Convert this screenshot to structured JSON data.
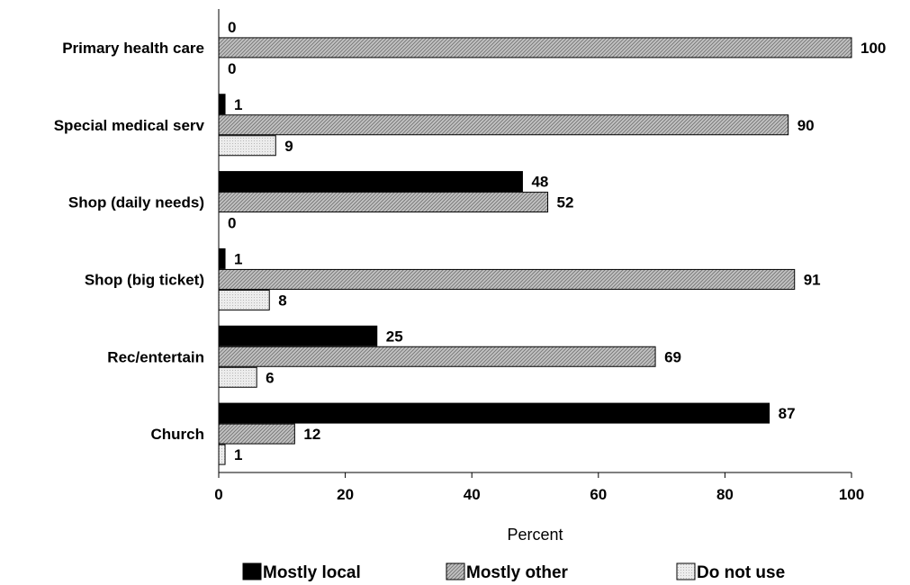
{
  "chart_data": {
    "type": "bar",
    "orientation": "horizontal",
    "categories": [
      "Primary health care",
      "Special medical serv",
      "Shop (daily needs)",
      "Shop (big ticket)",
      "Rec/entertain",
      "Church"
    ],
    "series": [
      {
        "name": "Mostly local",
        "values": [
          0,
          1,
          48,
          1,
          25,
          87
        ],
        "color": "#000000",
        "pattern": "solid"
      },
      {
        "name": "Mostly other",
        "values": [
          100,
          90,
          52,
          91,
          69,
          12
        ],
        "color": "#b0b0b0",
        "pattern": "diagonal-hatch"
      },
      {
        "name": "Do not use",
        "values": [
          0,
          9,
          0,
          8,
          6,
          1
        ],
        "color": "#e6e6e6",
        "pattern": "light-dots"
      }
    ],
    "xlabel": "Percent",
    "ylabel": "",
    "xlim": [
      0,
      100
    ],
    "xticks": [
      "0",
      "20",
      "40",
      "60",
      "80",
      "100"
    ],
    "grid": false,
    "legend_position": "bottom"
  }
}
